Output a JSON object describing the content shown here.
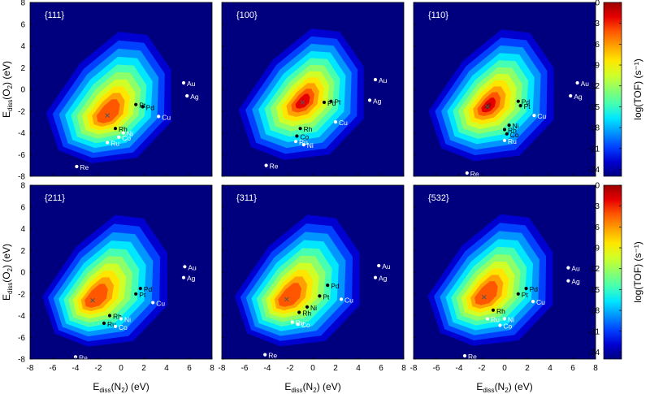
{
  "chart_data": {
    "type": "heatmap",
    "description_axes": {
      "xlabel": "E_diss(N2) (eV)",
      "ylabel": "E_diss(O2) (eV)",
      "x_ticks": [
        -8,
        -6,
        -4,
        -2,
        0,
        2,
        4,
        6,
        8
      ],
      "y_ticks": [
        8,
        6,
        4,
        2,
        0,
        -2,
        -4,
        -6,
        -8
      ],
      "xlim": [
        -8,
        8
      ],
      "ylim": [
        -8,
        8
      ]
    },
    "xlabel_parts": {
      "main": "E",
      "sub": "diss",
      "rest": "(N",
      "sub2": "2",
      "tail": ")  (eV)"
    },
    "ylabel_parts": {
      "main": "E",
      "sub": "diss",
      "rest": "(O",
      "sub2": "2",
      "tail": ")  (eV)"
    },
    "colorbar": {
      "label": "log(TOF)  (s⁻¹)",
      "ticks": [
        0,
        -3,
        -6,
        -9,
        -12,
        -15,
        -18,
        -21,
        -24
      ],
      "range": [
        -25,
        0
      ],
      "colors": [
        "#00007f",
        "#0000d0",
        "#0041ff",
        "#0095ff",
        "#00e6ff",
        "#45ffb2",
        "#8cff6b",
        "#d0ff27",
        "#ffe600",
        "#ffa100",
        "#ff5700",
        "#e60000",
        "#9c0000"
      ]
    },
    "panels": [
      {
        "facet": "{111}",
        "peak": [
          -1.2,
          -2.4
        ],
        "points": [
          {
            "label": "Au",
            "x": 5.5,
            "y": 0.6,
            "color": "white"
          },
          {
            "label": "Ag",
            "x": 5.8,
            "y": -0.6,
            "color": "white"
          },
          {
            "label": "Pt",
            "x": 1.3,
            "y": -1.4,
            "color": "black"
          },
          {
            "label": "Pd",
            "x": 1.9,
            "y": -1.6,
            "color": "black"
          },
          {
            "label": "Cu",
            "x": 3.3,
            "y": -2.5,
            "color": "white"
          },
          {
            "label": "Rh",
            "x": -0.5,
            "y": -3.6,
            "color": "black"
          },
          {
            "label": "Ni",
            "x": 0.2,
            "y": -4.0,
            "color": "white"
          },
          {
            "label": "Co",
            "x": -0.2,
            "y": -4.4,
            "color": "white"
          },
          {
            "label": "Ru",
            "x": -1.2,
            "y": -4.9,
            "color": "white"
          },
          {
            "label": "Re",
            "x": -3.9,
            "y": -7.1,
            "color": "white"
          }
        ]
      },
      {
        "facet": "{100}",
        "peak": [
          -0.9,
          -1.2
        ],
        "points": [
          {
            "label": "Au",
            "x": 5.5,
            "y": 0.9,
            "color": "white"
          },
          {
            "label": "Ag",
            "x": 5.0,
            "y": -1.0,
            "color": "white"
          },
          {
            "label": "Pd",
            "x": 1.0,
            "y": -1.2,
            "color": "black"
          },
          {
            "label": "Pt",
            "x": 1.6,
            "y": -1.1,
            "color": "black"
          },
          {
            "label": "Cu",
            "x": 2.0,
            "y": -3.0,
            "color": "white"
          },
          {
            "label": "Rh",
            "x": -1.1,
            "y": -3.6,
            "color": "black"
          },
          {
            "label": "Co",
            "x": -1.4,
            "y": -4.3,
            "color": "black"
          },
          {
            "label": "Ru",
            "x": -1.5,
            "y": -4.8,
            "color": "white"
          },
          {
            "label": "Ni",
            "x": -0.8,
            "y": -5.1,
            "color": "white"
          },
          {
            "label": "Re",
            "x": -4.1,
            "y": -7.0,
            "color": "white"
          }
        ]
      },
      {
        "facet": "{110}",
        "peak": [
          -1.5,
          -1.6
        ],
        "points": [
          {
            "label": "Au",
            "x": 6.4,
            "y": 0.6,
            "color": "white"
          },
          {
            "label": "Ag",
            "x": 5.8,
            "y": -0.6,
            "color": "white"
          },
          {
            "label": "Pd",
            "x": 1.2,
            "y": -1.1,
            "color": "black"
          },
          {
            "label": "Pt",
            "x": 1.4,
            "y": -1.5,
            "color": "black"
          },
          {
            "label": "Cu",
            "x": 2.6,
            "y": -2.4,
            "color": "white"
          },
          {
            "label": "Ni",
            "x": 0.4,
            "y": -3.3,
            "color": "black"
          },
          {
            "label": "Rh",
            "x": 0.0,
            "y": -3.7,
            "color": "black"
          },
          {
            "label": "Co",
            "x": 0.2,
            "y": -4.1,
            "color": "black"
          },
          {
            "label": "Ru",
            "x": 0.0,
            "y": -4.7,
            "color": "white"
          },
          {
            "label": "Re",
            "x": -3.3,
            "y": -7.7,
            "color": "white"
          }
        ]
      },
      {
        "facet": "{211}",
        "peak": [
          -2.5,
          -2.6
        ],
        "points": [
          {
            "label": "Au",
            "x": 5.6,
            "y": 0.5,
            "color": "white"
          },
          {
            "label": "Ag",
            "x": 5.5,
            "y": -0.5,
            "color": "white"
          },
          {
            "label": "Pd",
            "x": 1.7,
            "y": -1.5,
            "color": "black"
          },
          {
            "label": "Pt",
            "x": 1.3,
            "y": -2.0,
            "color": "black"
          },
          {
            "label": "Cu",
            "x": 2.8,
            "y": -2.8,
            "color": "white"
          },
          {
            "label": "Rh",
            "x": -1.0,
            "y": -4.0,
            "color": "black"
          },
          {
            "label": "Ni",
            "x": 0.0,
            "y": -4.3,
            "color": "white"
          },
          {
            "label": "Ru",
            "x": -1.5,
            "y": -4.7,
            "color": "black"
          },
          {
            "label": "Co",
            "x": -0.5,
            "y": -5.0,
            "color": "white"
          },
          {
            "label": "Re",
            "x": -4.0,
            "y": -7.8,
            "color": "white"
          }
        ]
      },
      {
        "facet": "{311}",
        "peak": [
          -2.3,
          -2.5
        ],
        "points": [
          {
            "label": "Au",
            "x": 5.8,
            "y": 0.6,
            "color": "white"
          },
          {
            "label": "Ag",
            "x": 5.5,
            "y": -0.5,
            "color": "white"
          },
          {
            "label": "Pd",
            "x": 1.3,
            "y": -1.2,
            "color": "black"
          },
          {
            "label": "Pt",
            "x": 0.6,
            "y": -2.2,
            "color": "black"
          },
          {
            "label": "Cu",
            "x": 2.5,
            "y": -2.5,
            "color": "white"
          },
          {
            "label": "Ni",
            "x": -0.5,
            "y": -3.2,
            "color": "black"
          },
          {
            "label": "Rh",
            "x": -1.2,
            "y": -3.7,
            "color": "black"
          },
          {
            "label": "Ru",
            "x": -1.8,
            "y": -4.6,
            "color": "white"
          },
          {
            "label": "Co",
            "x": -1.3,
            "y": -4.8,
            "color": "white"
          },
          {
            "label": "Re",
            "x": -4.2,
            "y": -7.6,
            "color": "white"
          }
        ]
      },
      {
        "facet": "{532}",
        "peak": [
          -1.8,
          -2.3
        ],
        "points": [
          {
            "label": "Au",
            "x": 5.6,
            "y": 0.4,
            "color": "white"
          },
          {
            "label": "Ag",
            "x": 5.6,
            "y": -0.8,
            "color": "white"
          },
          {
            "label": "Pd",
            "x": 1.9,
            "y": -1.5,
            "color": "black"
          },
          {
            "label": "Pt",
            "x": 1.2,
            "y": -2.0,
            "color": "black"
          },
          {
            "label": "Cu",
            "x": 2.5,
            "y": -2.7,
            "color": "white"
          },
          {
            "label": "Rh",
            "x": -1.0,
            "y": -3.5,
            "color": "black"
          },
          {
            "label": "Ru",
            "x": -1.5,
            "y": -4.3,
            "color": "white"
          },
          {
            "label": "Ni",
            "x": 0.0,
            "y": -4.3,
            "color": "white"
          },
          {
            "label": "Co",
            "x": -0.4,
            "y": -4.9,
            "color": "white"
          },
          {
            "label": "Re",
            "x": -3.5,
            "y": -7.7,
            "color": "white"
          }
        ]
      }
    ]
  }
}
